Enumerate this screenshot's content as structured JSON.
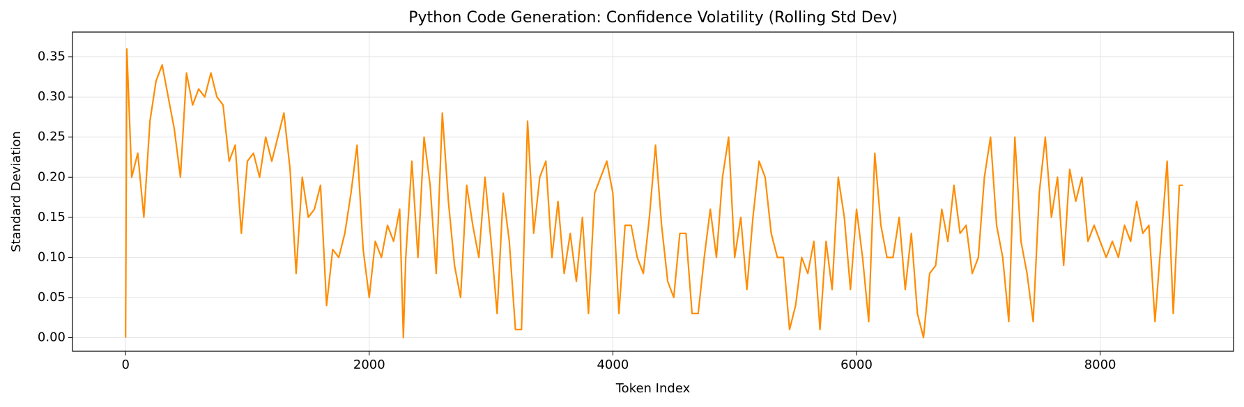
{
  "chart_data": {
    "type": "line",
    "title": "Python Code Generation: Confidence Volatility (Rolling Std Dev)",
    "xlabel": "Token Index",
    "ylabel": "Standard Deviation",
    "xlim": [
      -436,
      9095
    ],
    "ylim": [
      -0.017,
      0.381
    ],
    "xticks": [
      0,
      2000,
      4000,
      6000,
      8000
    ],
    "yticks": [
      {
        "value": 0,
        "label": "0.00"
      },
      {
        "value": 0.05,
        "label": "0.05"
      },
      {
        "value": 0.1,
        "label": "0.10"
      },
      {
        "value": 0.15,
        "label": "0.15"
      },
      {
        "value": 0.2,
        "label": "0.20"
      },
      {
        "value": 0.25,
        "label": "0.25"
      },
      {
        "value": 0.3,
        "label": "0.30"
      },
      {
        "value": 0.35,
        "label": "0.35"
      }
    ],
    "grid": true,
    "series": [
      {
        "color": "#ff8c00",
        "x": [
          0,
          10,
          50,
          100,
          150,
          200,
          250,
          300,
          350,
          400,
          450,
          500,
          550,
          600,
          650,
          700,
          750,
          800,
          850,
          900,
          950,
          1000,
          1050,
          1100,
          1150,
          1200,
          1250,
          1300,
          1350,
          1400,
          1450,
          1500,
          1550,
          1600,
          1650,
          1700,
          1750,
          1800,
          1850,
          1900,
          1950,
          2000,
          2050,
          2100,
          2150,
          2200,
          2250,
          2280,
          2300,
          2350,
          2400,
          2450,
          2500,
          2550,
          2600,
          2650,
          2700,
          2750,
          2800,
          2850,
          2900,
          2950,
          3000,
          3050,
          3100,
          3150,
          3200,
          3250,
          3300,
          3350,
          3400,
          3450,
          3500,
          3550,
          3600,
          3650,
          3700,
          3750,
          3800,
          3850,
          3900,
          3950,
          4000,
          4050,
          4100,
          4150,
          4200,
          4250,
          4300,
          4350,
          4400,
          4450,
          4500,
          4550,
          4600,
          4650,
          4700,
          4750,
          4800,
          4850,
          4900,
          4950,
          5000,
          5050,
          5100,
          5150,
          5200,
          5250,
          5300,
          5350,
          5400,
          5450,
          5500,
          5550,
          5600,
          5650,
          5700,
          5750,
          5800,
          5850,
          5900,
          5950,
          6000,
          6050,
          6100,
          6150,
          6200,
          6250,
          6300,
          6350,
          6400,
          6450,
          6500,
          6550,
          6600,
          6650,
          6700,
          6750,
          6800,
          6850,
          6900,
          6950,
          7000,
          7050,
          7100,
          7150,
          7200,
          7250,
          7300,
          7350,
          7400,
          7450,
          7500,
          7550,
          7600,
          7650,
          7700,
          7750,
          7800,
          7850,
          7900,
          7950,
          8000,
          8050,
          8100,
          8150,
          8200,
          8250,
          8300,
          8350,
          8400,
          8450,
          8500,
          8550,
          8600,
          8650,
          8680
        ],
        "values": [
          0,
          0.36,
          0.2,
          0.23,
          0.15,
          0.27,
          0.32,
          0.34,
          0.3,
          0.26,
          0.2,
          0.33,
          0.29,
          0.31,
          0.3,
          0.33,
          0.3,
          0.29,
          0.22,
          0.24,
          0.13,
          0.22,
          0.23,
          0.2,
          0.25,
          0.22,
          0.25,
          0.28,
          0.21,
          0.08,
          0.2,
          0.15,
          0.16,
          0.19,
          0.04,
          0.11,
          0.1,
          0.13,
          0.18,
          0.24,
          0.11,
          0.05,
          0.12,
          0.1,
          0.14,
          0.12,
          0.16,
          0,
          0.1,
          0.22,
          0.1,
          0.25,
          0.19,
          0.08,
          0.28,
          0.17,
          0.09,
          0.05,
          0.19,
          0.14,
          0.1,
          0.2,
          0.12,
          0.03,
          0.18,
          0.12,
          0.01,
          0.01,
          0.27,
          0.13,
          0.2,
          0.22,
          0.1,
          0.17,
          0.08,
          0.13,
          0.07,
          0.15,
          0.03,
          0.18,
          0.2,
          0.22,
          0.18,
          0.03,
          0.14,
          0.14,
          0.1,
          0.08,
          0.15,
          0.24,
          0.14,
          0.07,
          0.05,
          0.13,
          0.13,
          0.03,
          0.03,
          0.1,
          0.16,
          0.1,
          0.2,
          0.25,
          0.1,
          0.15,
          0.06,
          0.15,
          0.22,
          0.2,
          0.13,
          0.1,
          0.1,
          0.01,
          0.04,
          0.1,
          0.08,
          0.12,
          0.01,
          0.12,
          0.06,
          0.2,
          0.15,
          0.06,
          0.16,
          0.1,
          0.02,
          0.23,
          0.14,
          0.1,
          0.1,
          0.15,
          0.06,
          0.13,
          0.03,
          0,
          0.08,
          0.09,
          0.16,
          0.12,
          0.19,
          0.13,
          0.14,
          0.08,
          0.1,
          0.2,
          0.25,
          0.14,
          0.1,
          0.02,
          0.25,
          0.12,
          0.08,
          0.02,
          0.18,
          0.25,
          0.15,
          0.2,
          0.09,
          0.21,
          0.17,
          0.2,
          0.12,
          0.14,
          0.12,
          0.1,
          0.12,
          0.1,
          0.14,
          0.12,
          0.17,
          0.13,
          0.14,
          0.02,
          0.12,
          0.22,
          0.03,
          0.19,
          0.19
        ]
      }
    ]
  }
}
